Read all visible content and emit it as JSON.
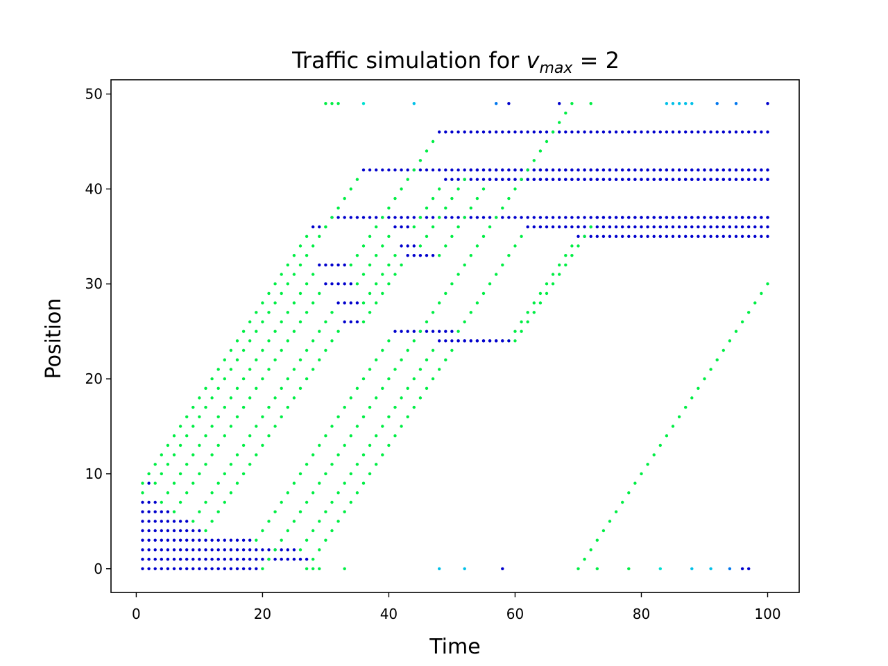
{
  "chart_data": {
    "type": "scatter",
    "title_parts": {
      "prefix": "Traffic simulation for ",
      "variable": "v",
      "subscript": "max",
      "suffix": " = 2"
    },
    "xlabel": "Time",
    "ylabel": "Position",
    "xlim": [
      -4,
      105
    ],
    "ylim": [
      -2.5,
      51.5
    ],
    "xticks": [
      0,
      20,
      40,
      60,
      80,
      100
    ],
    "yticks": [
      0,
      10,
      20,
      30,
      40,
      50
    ],
    "grid": false,
    "legend": "none",
    "colors": {
      "speed0": "#0000cc",
      "speed1": "#0077ee",
      "speed2": "#00c0e8",
      "speed3": "#00e0d0",
      "speed4": "#00ee44"
    },
    "cars_note_values": "Each car: start time t0, start position p0, per-step speed sequence (cells per time step); sampled from the plotted trajectories",
    "cars": [
      {
        "t0": 1,
        "p0": 9,
        "speeds": [
          1,
          1,
          1,
          1,
          1,
          1,
          1,
          1,
          1,
          1,
          1,
          1,
          1,
          1,
          1,
          1,
          1,
          1,
          1,
          1,
          1,
          1,
          1,
          1,
          1,
          1,
          1,
          0,
          0,
          1,
          0,
          0,
          0,
          0,
          0,
          0,
          0,
          0,
          0,
          0,
          0,
          0,
          0,
          0,
          0,
          0,
          0,
          0,
          0,
          0,
          0,
          0,
          0,
          0,
          0,
          0,
          0,
          0,
          0,
          0,
          0,
          0,
          0,
          0,
          0,
          0,
          0,
          0,
          0,
          0,
          0,
          0,
          0,
          0,
          0,
          0,
          0,
          0,
          0,
          0,
          0,
          0,
          0,
          0,
          0,
          0,
          0,
          0,
          0,
          0,
          0,
          0,
          0,
          0,
          0,
          0,
          0,
          0,
          0,
          0
        ]
      },
      {
        "t0": 1,
        "p0": 8,
        "speeds": [
          1,
          0,
          1,
          1,
          1,
          1,
          1,
          1,
          1,
          1,
          1,
          1,
          1,
          1,
          1,
          1,
          1,
          1,
          1,
          1,
          1,
          1,
          1,
          1,
          1,
          1,
          1,
          1,
          1,
          1,
          1,
          1,
          1,
          1,
          1,
          0,
          0,
          0,
          0,
          0,
          0,
          0,
          0,
          0,
          0,
          0,
          0,
          0,
          0,
          0,
          0,
          0,
          0,
          0,
          0,
          0,
          0,
          0,
          0,
          0,
          0,
          0,
          0,
          0,
          0,
          0,
          0,
          0,
          0,
          0,
          0,
          0,
          0,
          0,
          0,
          0,
          0,
          0,
          0,
          0,
          0,
          0,
          0,
          0,
          0,
          0,
          0,
          0,
          0,
          0,
          0,
          0,
          0,
          0,
          0,
          0,
          0,
          0,
          0,
          0
        ]
      },
      {
        "t0": 1,
        "p0": 7,
        "speeds": [
          0,
          0,
          0,
          1,
          1,
          1,
          1,
          1,
          1,
          1,
          1,
          1,
          1,
          1,
          1,
          1,
          1,
          1,
          1,
          1,
          1,
          1,
          1,
          1,
          1,
          1,
          1,
          1,
          0,
          0,
          0,
          0,
          0,
          1,
          1,
          1,
          1,
          1,
          1,
          1,
          1,
          1,
          1,
          1,
          1,
          1,
          1,
          0,
          0,
          0,
          0,
          0,
          0,
          0,
          0,
          0,
          0,
          0,
          0,
          0,
          0,
          0,
          0,
          0,
          0,
          0,
          0,
          0,
          0,
          0,
          0,
          0,
          0,
          0,
          0,
          0,
          0,
          0,
          0,
          0,
          0,
          0,
          0,
          0,
          0,
          0,
          0,
          0,
          0,
          0,
          0,
          0,
          0,
          0,
          0,
          0,
          0,
          0,
          0,
          0
        ]
      },
      {
        "t0": 1,
        "p0": 6,
        "speeds": [
          0,
          0,
          0,
          0,
          0,
          1,
          1,
          1,
          1,
          1,
          1,
          1,
          1,
          1,
          1,
          1,
          1,
          1,
          1,
          1,
          1,
          1,
          1,
          1,
          1,
          1,
          1,
          1,
          1,
          0,
          0,
          0,
          0,
          0,
          1,
          1,
          1,
          1,
          1,
          1,
          0,
          0,
          0,
          1,
          1,
          1,
          1,
          1,
          0,
          0,
          0,
          0,
          0,
          0,
          0,
          0,
          0,
          0,
          0,
          0,
          0,
          0,
          0,
          0,
          0,
          0,
          0,
          0,
          0,
          0,
          0,
          0,
          0,
          0,
          0,
          0,
          0,
          0,
          0,
          0,
          0,
          0,
          0,
          0,
          0,
          0,
          0,
          0,
          0,
          0,
          0,
          0,
          0,
          0,
          0,
          0,
          0,
          0,
          0,
          0
        ]
      },
      {
        "t0": 1,
        "p0": 5,
        "speeds": [
          0,
          0,
          0,
          0,
          0,
          0,
          0,
          0,
          1,
          1,
          1,
          1,
          1,
          1,
          1,
          1,
          1,
          1,
          1,
          1,
          1,
          1,
          1,
          1,
          1,
          1,
          1,
          1,
          1,
          1,
          1,
          0,
          0,
          0,
          0,
          1,
          1,
          1,
          1,
          1,
          1,
          0,
          0,
          0,
          1,
          1,
          1,
          1,
          1,
          1,
          1,
          1,
          0,
          0,
          0,
          0,
          0,
          0,
          0,
          0,
          0,
          0,
          0,
          0,
          0,
          0,
          0,
          0,
          0,
          0,
          0,
          0,
          0,
          0,
          0,
          0,
          0,
          0,
          0,
          0,
          0,
          0,
          0,
          0,
          0,
          0,
          0,
          0,
          0,
          0,
          0,
          0,
          0,
          0,
          0,
          0,
          0,
          0,
          0,
          0
        ]
      },
      {
        "t0": 1,
        "p0": 4,
        "speeds": [
          0,
          0,
          0,
          0,
          0,
          0,
          0,
          0,
          0,
          0,
          1,
          1,
          1,
          1,
          1,
          1,
          1,
          1,
          1,
          1,
          1,
          1,
          1,
          1,
          1,
          1,
          1,
          1,
          1,
          1,
          1,
          1,
          0,
          0,
          0,
          1,
          1,
          1,
          1,
          1,
          1,
          1,
          0,
          0,
          0,
          0,
          0,
          1,
          1,
          1,
          1,
          1,
          1,
          1,
          1,
          0,
          0,
          0,
          0,
          0,
          0,
          0,
          0,
          0,
          0,
          0,
          0,
          0,
          0,
          0,
          0,
          0,
          0,
          0,
          0,
          0,
          0,
          0,
          0,
          0,
          0,
          0,
          0,
          0,
          0,
          0,
          0,
          0,
          0,
          0,
          0,
          0,
          0,
          0,
          0,
          0,
          0,
          0,
          0,
          0
        ]
      },
      {
        "t0": 1,
        "p0": 3,
        "speeds": [
          0,
          0,
          0,
          0,
          0,
          0,
          0,
          0,
          0,
          0,
          0,
          0,
          0,
          0,
          0,
          0,
          0,
          0,
          1,
          1,
          1,
          1,
          1,
          1,
          1,
          1,
          1,
          1,
          1,
          1,
          1,
          1,
          1,
          1,
          1,
          1,
          1,
          1,
          1,
          1,
          0,
          0,
          0,
          0,
          0,
          0,
          0,
          0,
          0,
          0,
          1,
          1,
          1,
          1,
          1,
          1,
          1,
          1,
          1,
          1,
          1,
          0,
          0,
          0,
          0,
          0,
          0,
          0,
          0,
          0,
          0,
          0,
          0,
          0,
          0,
          0,
          0,
          0,
          0,
          0,
          0,
          0,
          0,
          0,
          0,
          0,
          0,
          0,
          0,
          0,
          0,
          0,
          0,
          0,
          0,
          0,
          0,
          0,
          0,
          0
        ]
      },
      {
        "t0": 1,
        "p0": 2,
        "speeds": [
          0,
          0,
          0,
          0,
          0,
          0,
          0,
          0,
          0,
          0,
          0,
          0,
          0,
          0,
          0,
          0,
          0,
          0,
          0,
          0,
          0,
          0,
          0,
          0,
          0,
          1,
          1,
          1,
          1,
          1,
          1,
          1,
          1,
          1,
          1,
          1,
          1,
          1,
          1,
          1,
          1,
          1,
          1,
          1,
          1,
          1,
          1,
          0,
          0,
          0,
          0,
          0,
          0,
          0,
          0,
          0,
          0,
          0,
          1,
          1,
          1,
          1,
          1,
          1,
          1,
          1,
          1,
          1,
          1,
          0,
          0,
          0,
          0,
          0,
          0,
          0,
          0,
          0,
          0,
          0,
          0,
          0,
          0,
          0,
          0,
          0,
          0,
          0,
          0,
          0,
          0,
          0,
          0,
          0,
          0,
          0,
          0,
          0,
          0,
          0
        ]
      },
      {
        "t0": 1,
        "p0": 1,
        "speeds": [
          0,
          0,
          0,
          0,
          0,
          0,
          0,
          0,
          0,
          0,
          0,
          0,
          0,
          0,
          0,
          0,
          0,
          0,
          0,
          0,
          0,
          0,
          0,
          0,
          0,
          0,
          0,
          1,
          1,
          1,
          1,
          1,
          1,
          1,
          1,
          1,
          1,
          1,
          1,
          1,
          1,
          1,
          1,
          1,
          1,
          1,
          1,
          1,
          1,
          1,
          0,
          0,
          0,
          0,
          0,
          0,
          0,
          0,
          0,
          1,
          1,
          1,
          1,
          1,
          1,
          1,
          1,
          1,
          1,
          1,
          1,
          1,
          0,
          0,
          0,
          0,
          0,
          0,
          0,
          0,
          0,
          0,
          0,
          0,
          0,
          0,
          0,
          0,
          0,
          0,
          0,
          0,
          0,
          0,
          0,
          0,
          0,
          0,
          0,
          0
        ]
      },
      {
        "t0": 1,
        "p0": 0,
        "speeds": [
          0,
          0,
          0,
          0,
          0,
          0,
          0,
          0,
          0,
          0,
          0,
          0,
          0,
          0,
          0,
          0,
          0,
          0,
          0,
          1,
          1,
          1,
          1,
          1,
          1,
          1,
          1,
          1,
          1,
          1,
          1,
          1,
          1,
          1,
          1,
          1,
          1,
          1,
          1,
          1,
          1,
          1,
          1,
          1,
          1,
          1,
          1,
          1,
          1,
          1,
          1,
          1,
          1,
          1,
          1,
          1,
          1,
          1,
          1,
          1,
          1,
          1,
          1,
          1,
          1,
          1,
          1,
          1,
          1,
          1,
          1,
          1,
          1,
          1,
          1,
          1,
          1,
          1,
          1,
          1,
          1,
          1,
          1,
          1,
          1,
          1,
          1,
          1,
          1,
          1,
          1,
          1,
          1,
          1,
          1,
          1,
          1,
          1,
          1,
          1
        ]
      }
    ],
    "points_note": "Scatter points are generated from cars[]: position increases by speed each time step; colour maps to speed (0 blue ... 4 green).",
    "extra_points": [
      {
        "x": 27,
        "y": 0,
        "speed": 4
      },
      {
        "x": 28,
        "y": 0,
        "speed": 4
      },
      {
        "x": 29,
        "y": 0,
        "speed": 4
      },
      {
        "x": 33,
        "y": 0,
        "speed": 4
      },
      {
        "x": 48,
        "y": 0,
        "speed": 2
      },
      {
        "x": 52,
        "y": 0,
        "speed": 2
      },
      {
        "x": 58,
        "y": 0,
        "speed": 0
      },
      {
        "x": 73,
        "y": 0,
        "speed": 4
      },
      {
        "x": 78,
        "y": 0,
        "speed": 4
      },
      {
        "x": 83,
        "y": 0,
        "speed": 3
      },
      {
        "x": 88,
        "y": 0,
        "speed": 2
      },
      {
        "x": 91,
        "y": 0,
        "speed": 2
      },
      {
        "x": 94,
        "y": 0,
        "speed": 1
      },
      {
        "x": 96,
        "y": 0,
        "speed": 0
      },
      {
        "x": 97,
        "y": 0,
        "speed": 0
      },
      {
        "x": 30,
        "y": 49,
        "speed": 4
      },
      {
        "x": 31,
        "y": 49,
        "speed": 4
      },
      {
        "x": 32,
        "y": 49,
        "speed": 4
      },
      {
        "x": 36,
        "y": 49,
        "speed": 3
      },
      {
        "x": 44,
        "y": 49,
        "speed": 2
      },
      {
        "x": 57,
        "y": 49,
        "speed": 1
      },
      {
        "x": 59,
        "y": 49,
        "speed": 0
      },
      {
        "x": 67,
        "y": 49,
        "speed": 0
      },
      {
        "x": 72,
        "y": 49,
        "speed": 4
      },
      {
        "x": 84,
        "y": 49,
        "speed": 2
      },
      {
        "x": 85,
        "y": 49,
        "speed": 2
      },
      {
        "x": 86,
        "y": 49,
        "speed": 2
      },
      {
        "x": 87,
        "y": 49,
        "speed": 2
      },
      {
        "x": 88,
        "y": 49,
        "speed": 2
      },
      {
        "x": 92,
        "y": 49,
        "speed": 1
      },
      {
        "x": 95,
        "y": 49,
        "speed": 1
      },
      {
        "x": 100,
        "y": 49,
        "speed": 0
      }
    ]
  }
}
